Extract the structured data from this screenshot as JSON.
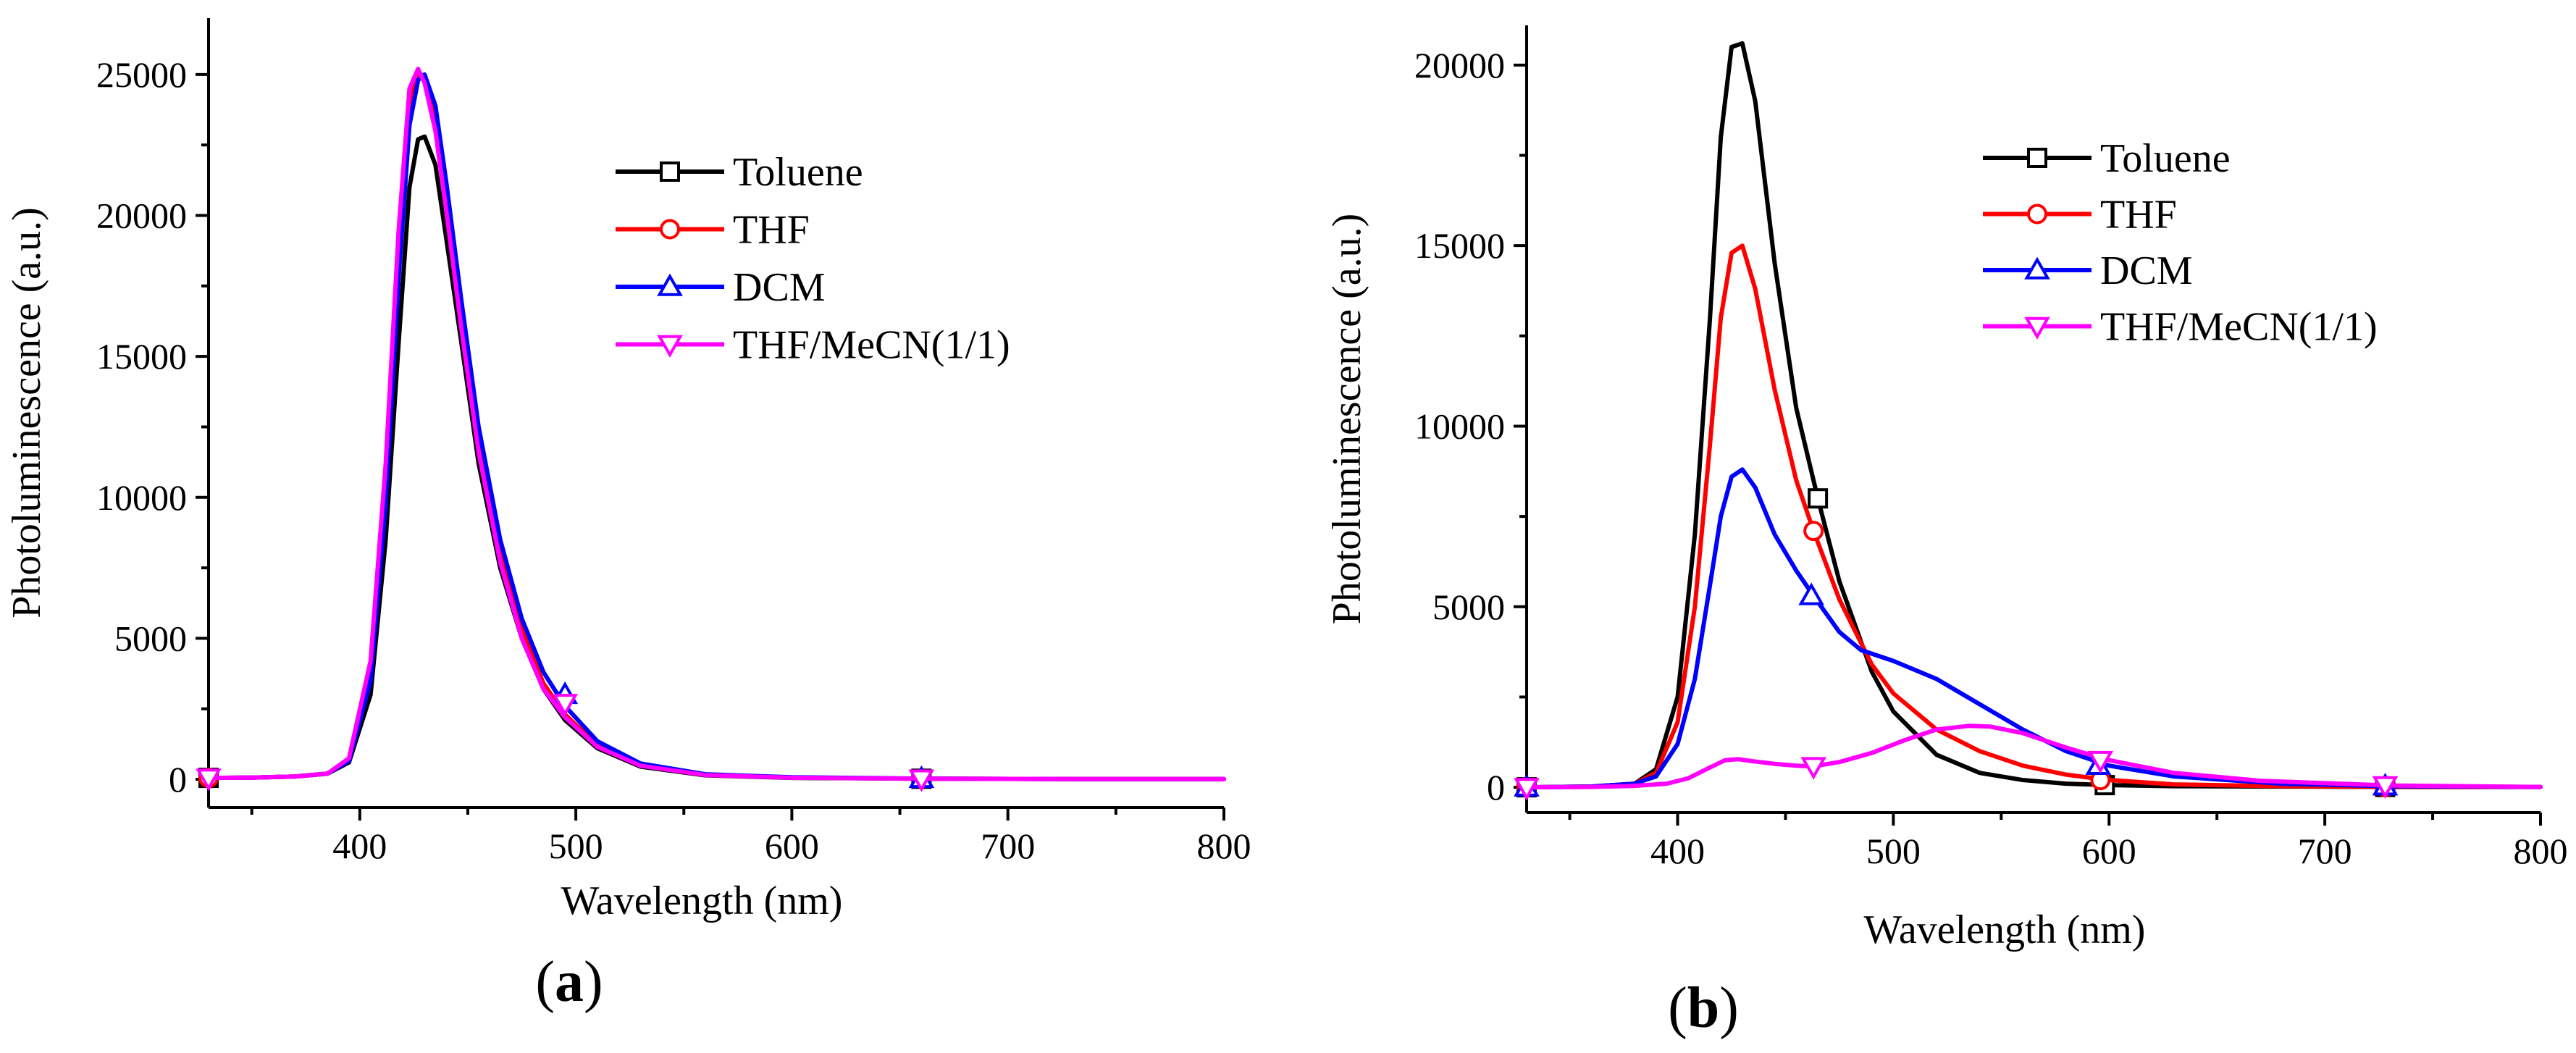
{
  "chart_data": [
    {
      "type": "line",
      "panel_label": "a",
      "title": "",
      "xlabel": "Wavelength (nm)",
      "ylabel": "Photoluminescence (a.u.)",
      "xlim": [
        330,
        800
      ],
      "ylim": [
        -1000,
        27000
      ],
      "xticks": [
        400,
        500,
        600,
        700,
        800
      ],
      "yticks": [
        0,
        5000,
        10000,
        15000,
        20000,
        25000
      ],
      "xtick_labels": [
        "400",
        "500",
        "600",
        "700",
        "800"
      ],
      "ytick_labels": [
        "0",
        "5000",
        "10000",
        "15000",
        "20000",
        "25000"
      ],
      "legend_position": "upper-right-inside",
      "series": [
        {
          "name": "Toluene",
          "color": "#000000",
          "marker": "square",
          "x": [
            330,
            350,
            370,
            385,
            395,
            405,
            412,
            418,
            423,
            427,
            430,
            435,
            440,
            447,
            455,
            465,
            475,
            485,
            495,
            510,
            530,
            560,
            600,
            660,
            730,
            800
          ],
          "y": [
            50,
            60,
            100,
            200,
            600,
            3000,
            8500,
            15500,
            21000,
            22700,
            22800,
            21800,
            19200,
            15500,
            11200,
            7500,
            5000,
            3200,
            2100,
            1100,
            450,
            140,
            50,
            20,
            10,
            10
          ],
          "marker_x": [
            330,
            660
          ],
          "marker_y": [
            50,
            20
          ]
        },
        {
          "name": "THF",
          "color": "#ff0000",
          "marker": "circle",
          "x": [
            330,
            350,
            370,
            385,
            395,
            405,
            412,
            418,
            423,
            427,
            430,
            435,
            440,
            447,
            455,
            465,
            475,
            485,
            495,
            510,
            530,
            560,
            600,
            660,
            730,
            800
          ],
          "y": [
            50,
            60,
            100,
            200,
            700,
            3800,
            10500,
            18500,
            23800,
            25100,
            24900,
            23500,
            20700,
            16500,
            12000,
            8000,
            5300,
            3400,
            2300,
            1200,
            500,
            160,
            60,
            20,
            10,
            10
          ],
          "marker_x": [
            330
          ],
          "marker_y": [
            50
          ]
        },
        {
          "name": "DCM",
          "color": "#0000ff",
          "marker": "triangle-up",
          "x": [
            330,
            350,
            370,
            385,
            395,
            405,
            412,
            418,
            423,
            427,
            430,
            435,
            440,
            447,
            455,
            465,
            475,
            485,
            495,
            510,
            530,
            560,
            600,
            660,
            730,
            800
          ],
          "y": [
            50,
            60,
            100,
            200,
            650,
            3500,
            9800,
            17800,
            23200,
            24800,
            25000,
            23900,
            21200,
            17000,
            12500,
            8500,
            5700,
            3800,
            2600,
            1350,
            560,
            180,
            70,
            25,
            10,
            10
          ],
          "marker_x": [
            495,
            660
          ],
          "marker_y": [
            3000,
            20
          ]
        },
        {
          "name": "THF/MeCN(1/1)",
          "color": "#ff00ff",
          "marker": "triangle-down",
          "x": [
            330,
            350,
            370,
            385,
            395,
            405,
            412,
            418,
            423,
            427,
            430,
            435,
            440,
            447,
            455,
            465,
            475,
            485,
            495,
            510,
            530,
            560,
            600,
            660,
            730,
            800
          ],
          "y": [
            50,
            60,
            100,
            200,
            750,
            4200,
            11200,
            19500,
            24500,
            25200,
            24700,
            23000,
            20200,
            16000,
            11600,
            7700,
            5000,
            3200,
            2200,
            1150,
            480,
            150,
            55,
            20,
            10,
            10
          ],
          "marker_x": [
            330,
            495,
            660
          ],
          "marker_y": [
            50,
            2700,
            20
          ]
        }
      ]
    },
    {
      "type": "line",
      "panel_label": "b",
      "title": "",
      "xlabel": "Wavelength (nm)",
      "ylabel": "Photoluminescence (a.u.)",
      "xlim": [
        330,
        800
      ],
      "ylim": [
        -700,
        21100
      ],
      "xticks": [
        400,
        500,
        600,
        700,
        800
      ],
      "yticks": [
        0,
        5000,
        10000,
        15000,
        20000
      ],
      "xtick_labels": [
        "400",
        "500",
        "600",
        "700",
        "800"
      ],
      "ytick_labels": [
        "0",
        "5000",
        "10000",
        "15000",
        "20000"
      ],
      "legend_position": "upper-right-inside",
      "series": [
        {
          "name": "Toluene",
          "color": "#000000",
          "marker": "square",
          "x": [
            330,
            360,
            380,
            390,
            400,
            408,
            415,
            420,
            425,
            430,
            436,
            445,
            455,
            465,
            475,
            490,
            500,
            520,
            540,
            560,
            580,
            600,
            630,
            680,
            730,
            800
          ],
          "y": [
            0,
            20,
            100,
            500,
            2500,
            7000,
            13000,
            18000,
            20500,
            20600,
            19000,
            14500,
            10500,
            8000,
            5700,
            3200,
            2100,
            900,
            400,
            200,
            100,
            60,
            30,
            20,
            10,
            10
          ],
          "marker_x": [
            330,
            465,
            598,
            728
          ],
          "marker_y": [
            0,
            8000,
            60,
            10
          ]
        },
        {
          "name": "THF",
          "color": "#ff0000",
          "marker": "circle",
          "x": [
            330,
            360,
            380,
            390,
            400,
            408,
            415,
            420,
            425,
            430,
            436,
            445,
            455,
            463,
            475,
            490,
            500,
            520,
            540,
            560,
            580,
            600,
            630,
            680,
            730,
            800
          ],
          "y": [
            0,
            20,
            100,
            400,
            1800,
            5000,
            9500,
            13000,
            14800,
            15000,
            13800,
            11000,
            8500,
            7100,
            5200,
            3400,
            2600,
            1600,
            1000,
            600,
            350,
            200,
            80,
            30,
            10,
            10
          ],
          "marker_x": [
            330,
            463,
            596,
            728
          ],
          "marker_y": [
            0,
            7100,
            200,
            10
          ]
        },
        {
          "name": "DCM",
          "color": "#0000ff",
          "marker": "triangle-up",
          "x": [
            330,
            360,
            380,
            390,
            400,
            408,
            415,
            420,
            425,
            430,
            436,
            445,
            455,
            463,
            475,
            485,
            500,
            520,
            540,
            560,
            580,
            600,
            630,
            680,
            730,
            800
          ],
          "y": [
            0,
            20,
            100,
            300,
            1200,
            3000,
            5600,
            7500,
            8600,
            8800,
            8300,
            7000,
            6000,
            5300,
            4300,
            3800,
            3500,
            3000,
            2300,
            1600,
            1000,
            600,
            300,
            100,
            30,
            10
          ],
          "marker_x": [
            330,
            462,
            595,
            728
          ],
          "marker_y": [
            0,
            5300,
            600,
            30
          ]
        },
        {
          "name": "THF/MeCN(1/1)",
          "color": "#ff00ff",
          "marker": "triangle-down",
          "x": [
            330,
            360,
            380,
            395,
            405,
            415,
            422,
            428,
            435,
            445,
            455,
            463,
            475,
            490,
            505,
            520,
            535,
            545,
            560,
            580,
            600,
            630,
            670,
            730,
            800
          ],
          "y": [
            0,
            10,
            40,
            100,
            250,
            550,
            750,
            780,
            720,
            650,
            600,
            580,
            700,
            950,
            1300,
            1600,
            1700,
            1680,
            1500,
            1100,
            750,
            400,
            180,
            50,
            10
          ],
          "marker_x": [
            330,
            463,
            596,
            728
          ],
          "marker_y": [
            0,
            580,
            750,
            50
          ]
        }
      ]
    }
  ]
}
